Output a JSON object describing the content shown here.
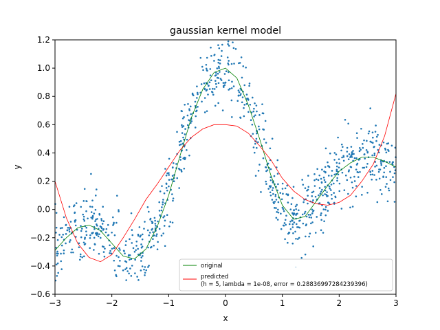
{
  "chart_data": {
    "type": "scatter",
    "title": "gaussian kernel model",
    "xlabel": "x",
    "ylabel": "y",
    "xlim": [
      -3,
      3
    ],
    "ylim": [
      -0.6,
      1.2
    ],
    "xticks": [
      -3,
      -2,
      -1,
      0,
      1,
      2,
      3
    ],
    "xtick_labels": [
      "−3",
      "−2",
      "−1",
      "0",
      "1",
      "2",
      "3"
    ],
    "yticks": [
      -0.6,
      -0.4,
      -0.2,
      0.0,
      0.2,
      0.4,
      0.6,
      0.8,
      1.0,
      1.2
    ],
    "ytick_labels": [
      "−0.6",
      "−0.4",
      "−0.2",
      "0.0",
      "0.2",
      "0.4",
      "0.6",
      "0.8",
      "1.0",
      "1.2"
    ],
    "grid": false,
    "legend_position": "lower-right",
    "series": [
      {
        "name": "original",
        "kind": "line",
        "color": "#008000",
        "x": [
          -3.0,
          -2.8,
          -2.6,
          -2.4,
          -2.2,
          -2.0,
          -1.8,
          -1.6,
          -1.4,
          -1.2,
          -1.0,
          -0.8,
          -0.6,
          -0.4,
          -0.2,
          0.0,
          0.2,
          0.4,
          0.6,
          0.8,
          1.0,
          1.2,
          1.4,
          1.6,
          1.8,
          2.0,
          2.2,
          2.4,
          2.6,
          2.8,
          3.0
        ],
        "y": [
          -0.29,
          -0.2,
          -0.13,
          -0.11,
          -0.15,
          -0.24,
          -0.33,
          -0.35,
          -0.28,
          -0.12,
          0.1,
          0.38,
          0.65,
          0.85,
          0.97,
          1.0,
          0.93,
          0.74,
          0.5,
          0.24,
          0.03,
          -0.07,
          -0.05,
          0.06,
          0.17,
          0.27,
          0.33,
          0.37,
          0.37,
          0.34,
          0.3
        ]
      },
      {
        "name": "predicted\n(h = 5, lambda = 1e-08, error = 0.28836997284239396)",
        "name_lines": [
          "predicted",
          "(h = 5, lambda = 1e-08, error = 0.28836997284239396)"
        ],
        "kind": "line",
        "color": "#ff0000",
        "x": [
          -3.0,
          -2.8,
          -2.6,
          -2.4,
          -2.2,
          -2.0,
          -1.8,
          -1.6,
          -1.4,
          -1.2,
          -1.0,
          -0.8,
          -0.6,
          -0.4,
          -0.2,
          0.0,
          0.2,
          0.4,
          0.6,
          0.8,
          1.0,
          1.2,
          1.4,
          1.6,
          1.8,
          2.0,
          2.2,
          2.4,
          2.6,
          2.8,
          3.0
        ],
        "y": [
          0.2,
          -0.06,
          -0.24,
          -0.34,
          -0.37,
          -0.32,
          -0.2,
          -0.07,
          0.07,
          0.18,
          0.3,
          0.42,
          0.51,
          0.57,
          0.6,
          0.6,
          0.59,
          0.54,
          0.45,
          0.35,
          0.22,
          0.13,
          0.07,
          0.04,
          0.03,
          0.05,
          0.1,
          0.2,
          0.32,
          0.52,
          0.82
        ]
      },
      {
        "name": "samples",
        "kind": "scatter",
        "color": "#1f77b4",
        "generator": "y = original(x) + noise",
        "count": 1000,
        "x_range": [
          -3,
          3
        ],
        "noise_sd": 0.12
      }
    ]
  }
}
